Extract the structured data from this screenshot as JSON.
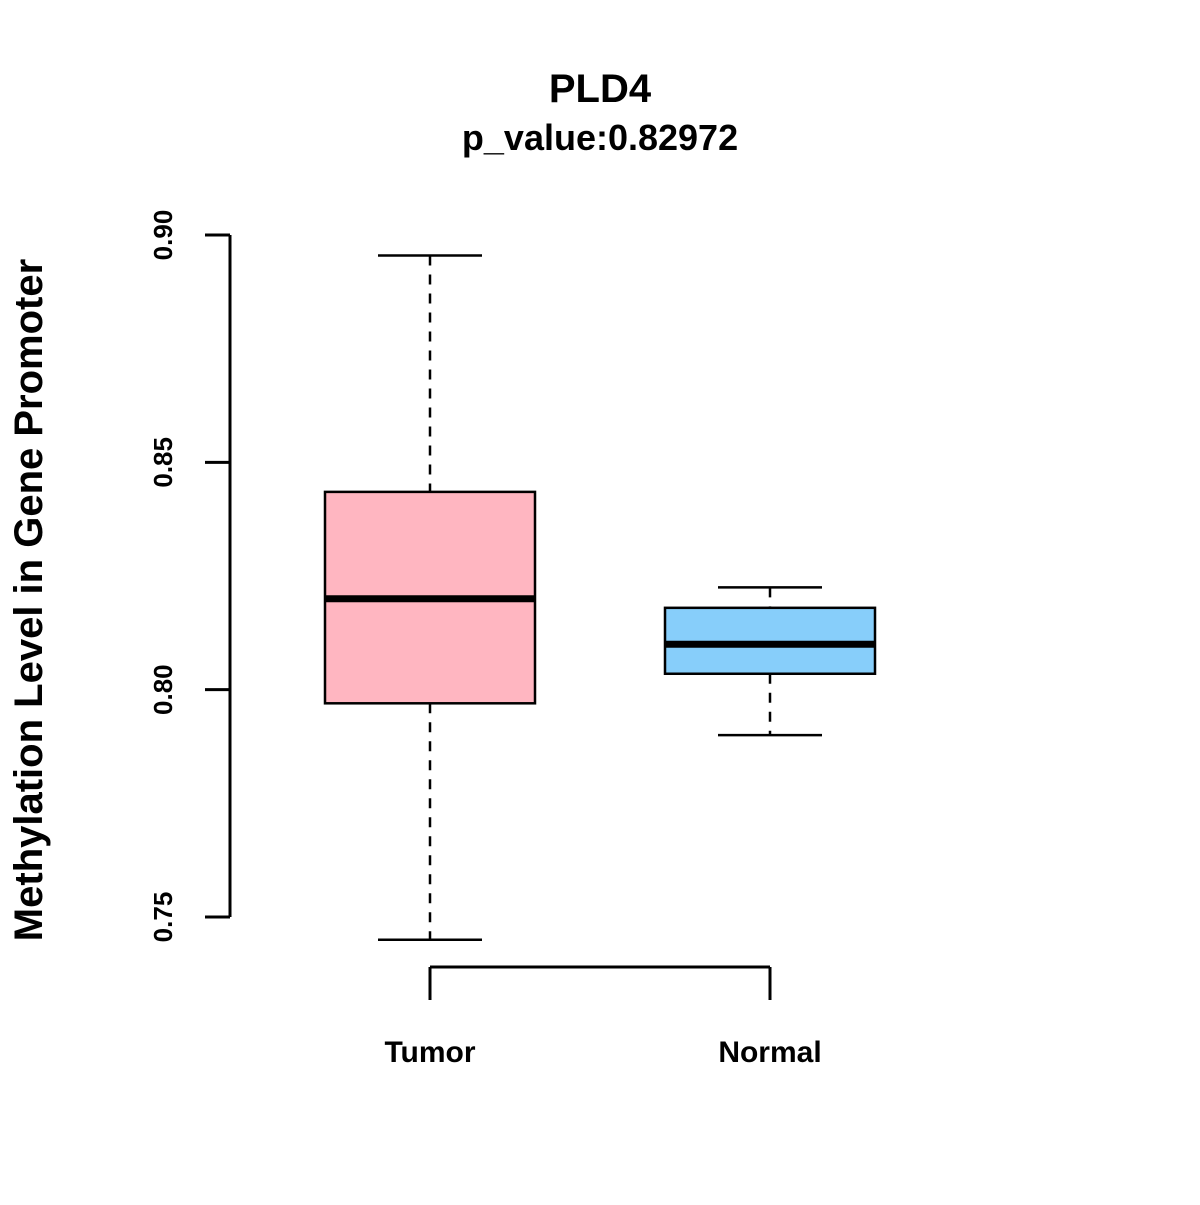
{
  "chart_data": {
    "type": "boxplot",
    "title": "PLD4",
    "subtitle": "p_value:0.82972",
    "ylabel": "Methylation Level in Gene Promoter",
    "xlabel": "",
    "ylim": [
      0.75,
      0.9
    ],
    "yticks": [
      0.75,
      0.8,
      0.85,
      0.9
    ],
    "ytick_labels": [
      "0.75",
      "0.80",
      "0.85",
      "0.90"
    ],
    "categories": [
      "Tumor",
      "Normal"
    ],
    "series": [
      {
        "name": "Tumor",
        "color": "#FFB6C1",
        "lower_whisker": 0.745,
        "q1": 0.797,
        "median": 0.82,
        "q3": 0.8435,
        "upper_whisker": 0.8955
      },
      {
        "name": "Normal",
        "color": "#87CEFA",
        "lower_whisker": 0.79,
        "q1": 0.8035,
        "median": 0.81,
        "q3": 0.818,
        "upper_whisker": 0.8225
      }
    ],
    "whisker_style": "dashed",
    "box_border_color": "#000000",
    "median_color": "#000000",
    "grid": false,
    "legend": false
  }
}
